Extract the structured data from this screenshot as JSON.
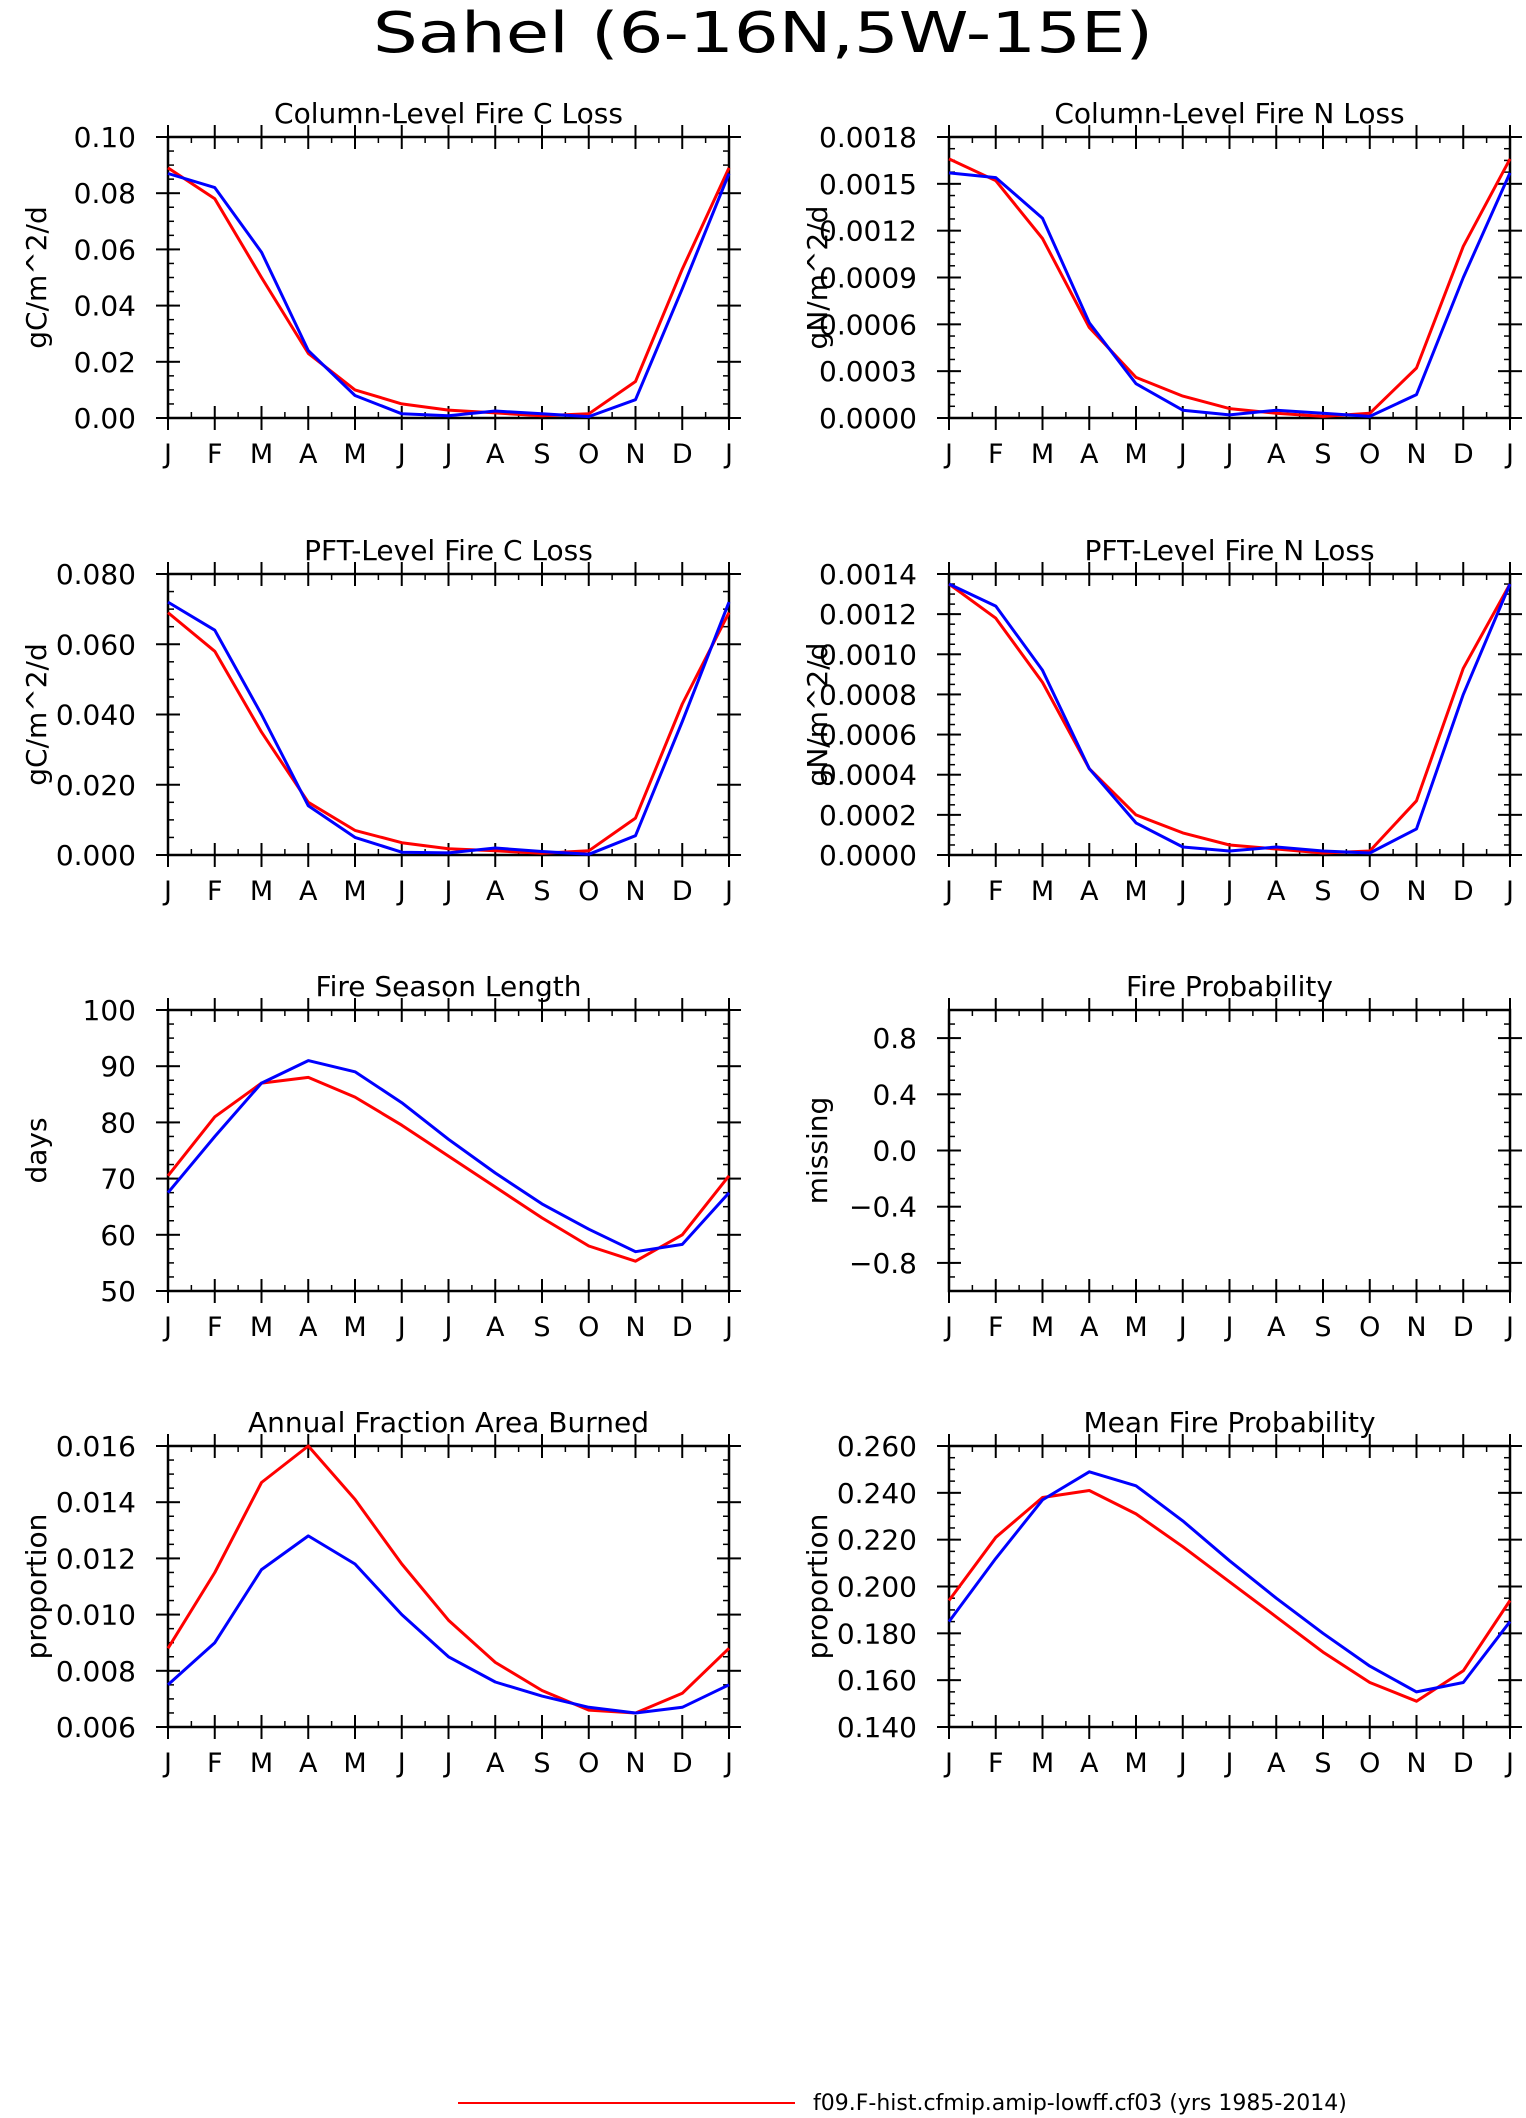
{
  "figure": {
    "title": "Sahel (6-16N,5W-15E)",
    "legend": {
      "label": "f09.F-hist.cfmip.amip-lowff.cf03 (yrs 1985-2014)",
      "color": "#ff0000"
    },
    "months": [
      "J",
      "F",
      "M",
      "A",
      "M",
      "J",
      "J",
      "A",
      "S",
      "O",
      "N",
      "D",
      "J"
    ]
  },
  "chart_data": [
    {
      "type": "line",
      "title": "Column-Level Fire C Loss",
      "ylabel": "gC/m^2/d",
      "ylim": [
        0,
        0.1
      ],
      "yticks": [
        "0.00",
        "0.02",
        "0.04",
        "0.06",
        "0.08",
        "0.10"
      ],
      "x": [
        "J",
        "F",
        "M",
        "A",
        "M",
        "J",
        "J",
        "A",
        "S",
        "O",
        "N",
        "D",
        "J"
      ],
      "series": [
        {
          "color": "#ff0000",
          "values": [
            0.089,
            0.078,
            0.05,
            0.023,
            0.01,
            0.005,
            0.0028,
            0.0018,
            0.0008,
            0.0015,
            0.013,
            0.053,
            0.089
          ]
        },
        {
          "color": "#0000ff",
          "values": [
            0.087,
            0.082,
            0.059,
            0.024,
            0.008,
            0.0015,
            0.0008,
            0.0025,
            0.0015,
            0.0005,
            0.0065,
            0.046,
            0.087
          ]
        }
      ]
    },
    {
      "type": "line",
      "title": "Column-Level Fire N Loss",
      "ylabel": "gN/m^2/d",
      "ylim": [
        0,
        0.0018
      ],
      "yticks": [
        "0.0000",
        "0.0003",
        "0.0006",
        "0.0009",
        "0.0012",
        "0.0015",
        "0.0018"
      ],
      "x": [
        "J",
        "F",
        "M",
        "A",
        "M",
        "J",
        "J",
        "A",
        "S",
        "O",
        "N",
        "D",
        "J"
      ],
      "series": [
        {
          "color": "#ff0000",
          "values": [
            0.00166,
            0.00152,
            0.00115,
            0.00058,
            0.00026,
            0.00014,
            6e-05,
            3e-05,
            1e-05,
            3e-05,
            0.00032,
            0.0011,
            0.00166
          ]
        },
        {
          "color": "#0000ff",
          "values": [
            0.00157,
            0.00154,
            0.00128,
            0.00061,
            0.00022,
            5e-05,
            2e-05,
            5e-05,
            3e-05,
            1e-05,
            0.00015,
            0.0009,
            0.00157
          ]
        }
      ]
    },
    {
      "type": "line",
      "title": "PFT-Level Fire C Loss",
      "ylabel": "gC/m^2/d",
      "ylim": [
        0,
        0.08
      ],
      "yticks": [
        "0.000",
        "0.020",
        "0.040",
        "0.060",
        "0.080"
      ],
      "x": [
        "J",
        "F",
        "M",
        "A",
        "M",
        "J",
        "J",
        "A",
        "S",
        "O",
        "N",
        "D",
        "J"
      ],
      "series": [
        {
          "color": "#ff0000",
          "values": [
            0.069,
            0.058,
            0.035,
            0.015,
            0.007,
            0.0035,
            0.0018,
            0.0012,
            0.0005,
            0.0012,
            0.0105,
            0.043,
            0.069
          ]
        },
        {
          "color": "#0000ff",
          "values": [
            0.072,
            0.064,
            0.04,
            0.014,
            0.005,
            0.0008,
            0.0006,
            0.002,
            0.001,
            0.0002,
            0.0055,
            0.038,
            0.072
          ]
        }
      ]
    },
    {
      "type": "line",
      "title": "PFT-Level Fire N Loss",
      "ylabel": "gN/m^2/d",
      "ylim": [
        0,
        0.0014
      ],
      "yticks": [
        "0.0000",
        "0.0002",
        "0.0004",
        "0.0006",
        "0.0008",
        "0.0010",
        "0.0012",
        "0.0014"
      ],
      "x": [
        "J",
        "F",
        "M",
        "A",
        "M",
        "J",
        "J",
        "A",
        "S",
        "O",
        "N",
        "D",
        "J"
      ],
      "series": [
        {
          "color": "#ff0000",
          "values": [
            0.00135,
            0.00118,
            0.00086,
            0.00043,
            0.0002,
            0.00011,
            5e-05,
            3e-05,
            1e-05,
            2e-05,
            0.00027,
            0.00093,
            0.00135
          ]
        },
        {
          "color": "#0000ff",
          "values": [
            0.00135,
            0.00124,
            0.00092,
            0.00043,
            0.00016,
            4e-05,
            2e-05,
            4e-05,
            2e-05,
            1e-05,
            0.00013,
            0.0008,
            0.00135
          ]
        }
      ]
    },
    {
      "type": "line",
      "title": "Fire Season Length",
      "ylabel": "days",
      "ylim": [
        50,
        100
      ],
      "yticks": [
        "50",
        "60",
        "70",
        "80",
        "90",
        "100"
      ],
      "x": [
        "J",
        "F",
        "M",
        "A",
        "M",
        "J",
        "J",
        "A",
        "S",
        "O",
        "N",
        "D",
        "J"
      ],
      "series": [
        {
          "color": "#ff0000",
          "values": [
            70.5,
            81,
            87,
            88,
            84.5,
            79.5,
            74,
            68.5,
            63,
            58,
            55.3,
            60,
            70.5
          ]
        },
        {
          "color": "#0000ff",
          "values": [
            67.5,
            77.5,
            87,
            91,
            89,
            83.5,
            77,
            71,
            65.5,
            61,
            57,
            58.3,
            67.5
          ]
        }
      ]
    },
    {
      "type": "line",
      "title": "Fire Probability",
      "ylabel": "missing",
      "ylim": [
        -1.0,
        1.0
      ],
      "yticks": [
        "-0.8",
        "-0.4",
        "0.0",
        "0.4",
        "0.8"
      ],
      "x": [
        "J",
        "F",
        "M",
        "A",
        "M",
        "J",
        "J",
        "A",
        "S",
        "O",
        "N",
        "D",
        "J"
      ],
      "series": []
    },
    {
      "type": "line",
      "title": "Annual Fraction Area Burned",
      "ylabel": "proportion",
      "ylim": [
        0.006,
        0.016
      ],
      "yticks": [
        "0.006",
        "0.008",
        "0.010",
        "0.012",
        "0.014",
        "0.016"
      ],
      "x": [
        "J",
        "F",
        "M",
        "A",
        "M",
        "J",
        "J",
        "A",
        "S",
        "O",
        "N",
        "D",
        "J"
      ],
      "series": [
        {
          "color": "#ff0000",
          "values": [
            0.0088,
            0.0115,
            0.0147,
            0.016,
            0.0141,
            0.0118,
            0.0098,
            0.0083,
            0.0073,
            0.0066,
            0.0065,
            0.0072,
            0.0088
          ]
        },
        {
          "color": "#0000ff",
          "values": [
            0.0075,
            0.009,
            0.0116,
            0.0128,
            0.0118,
            0.01,
            0.0085,
            0.0076,
            0.0071,
            0.0067,
            0.0065,
            0.0067,
            0.0075
          ]
        }
      ]
    },
    {
      "type": "line",
      "title": "Mean Fire Probability",
      "ylabel": "proportion",
      "ylim": [
        0.14,
        0.26
      ],
      "yticks": [
        "0.140",
        "0.160",
        "0.180",
        "0.200",
        "0.220",
        "0.240",
        "0.260"
      ],
      "x": [
        "J",
        "F",
        "M",
        "A",
        "M",
        "J",
        "J",
        "A",
        "S",
        "O",
        "N",
        "D",
        "J"
      ],
      "series": [
        {
          "color": "#ff0000",
          "values": [
            0.194,
            0.221,
            0.238,
            0.241,
            0.231,
            0.217,
            0.202,
            0.187,
            0.172,
            0.159,
            0.151,
            0.164,
            0.194
          ]
        },
        {
          "color": "#0000ff",
          "values": [
            0.185,
            0.212,
            0.237,
            0.249,
            0.243,
            0.228,
            0.211,
            0.195,
            0.18,
            0.166,
            0.155,
            0.159,
            0.185
          ]
        }
      ]
    }
  ]
}
